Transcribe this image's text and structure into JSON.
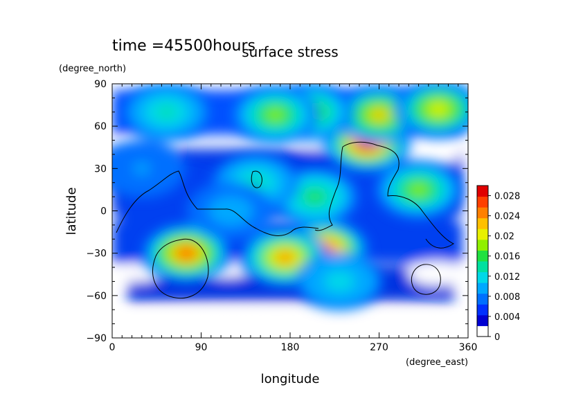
{
  "chart_data": {
    "type": "heatmap",
    "title": "surface stress",
    "time_label": "time =45500hours",
    "xlabel": "longitude",
    "ylabel": "latitude",
    "xunits": "(degree_east)",
    "yunits": "(degree_north)",
    "xlim": [
      0,
      360
    ],
    "ylim": [
      -90,
      90
    ],
    "xticks": [
      "0",
      "90",
      "180",
      "270",
      "360"
    ],
    "yticks": [
      "90",
      "60",
      "30",
      "0",
      "−30",
      "−60",
      "−90"
    ],
    "colorbar": {
      "ticks": [
        "0",
        "0.004",
        "0.008",
        "0.012",
        "0.016",
        "0.02",
        "0.024",
        "0.028"
      ],
      "tick_values": [
        0,
        0.004,
        0.008,
        0.012,
        0.016,
        0.02,
        0.024,
        0.028
      ],
      "range": [
        0,
        0.03
      ],
      "colors": [
        "#ffffff",
        "#0000d2",
        "#0030ff",
        "#0070ff",
        "#00a8ff",
        "#00d8e8",
        "#00e0a0",
        "#20e040",
        "#90f000",
        "#e8f000",
        "#ffc000",
        "#ff8000",
        "#ff4000",
        "#e00000"
      ]
    },
    "hotspots": [
      {
        "lon": 258,
        "lat": 48,
        "value": 0.029
      },
      {
        "lon": 75,
        "lat": -30,
        "value": 0.026
      },
      {
        "lon": 215,
        "lat": -27,
        "value": 0.027
      },
      {
        "lon": 175,
        "lat": -33,
        "value": 0.024
      },
      {
        "lon": 270,
        "lat": 68,
        "value": 0.021
      },
      {
        "lon": 330,
        "lat": 72,
        "value": 0.02
      },
      {
        "lon": 200,
        "lat": 70,
        "value": 0.018
      },
      {
        "lon": 165,
        "lat": 68,
        "value": 0.017
      },
      {
        "lon": 310,
        "lat": 15,
        "value": 0.018
      },
      {
        "lon": 205,
        "lat": 10,
        "value": 0.015
      },
      {
        "lon": 145,
        "lat": 20,
        "value": 0.012
      },
      {
        "lon": 55,
        "lat": 70,
        "value": 0.012
      },
      {
        "lon": 230,
        "lat": -50,
        "value": 0.011
      },
      {
        "lon": 120,
        "lat": 0,
        "value": 0.008
      },
      {
        "lon": 30,
        "lat": 30,
        "value": 0.007
      }
    ]
  }
}
